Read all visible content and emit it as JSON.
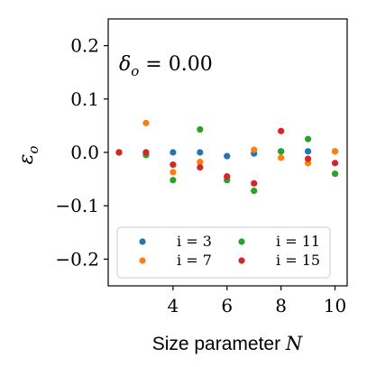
{
  "chart_data": {
    "type": "scatter",
    "title": "",
    "annotation": "δo = 0.00",
    "xlabel": "Size parameter N",
    "ylabel": "εo",
    "xlim": [
      1.6,
      10.45
    ],
    "ylim": [
      -0.25,
      0.25
    ],
    "xticks": [
      4,
      6,
      8,
      10
    ],
    "yticks": [
      -0.2,
      -0.1,
      0.0,
      0.1,
      0.2
    ],
    "ytick_labels": [
      "−0.2",
      "−0.1",
      "0.0",
      "0.1",
      "0.2"
    ],
    "grid": false,
    "legend_placement": "lower-center",
    "series": [
      {
        "name": "i = 3",
        "color": "#1f77b4",
        "x": [
          2,
          3,
          4,
          5,
          6,
          7,
          8,
          9,
          10
        ],
        "y": [
          0.0,
          0.0,
          0.0,
          0.0,
          -0.007,
          -0.002,
          0.002,
          0.002,
          0.002
        ]
      },
      {
        "name": "i = 7",
        "color": "#ff7f0e",
        "x": [
          2,
          3,
          4,
          5,
          6,
          7,
          8,
          9,
          10
        ],
        "y": [
          0.0,
          0.055,
          -0.037,
          -0.018,
          -0.048,
          0.005,
          -0.01,
          -0.02,
          0.002
        ]
      },
      {
        "name": "i = 11",
        "color": "#2ca02c",
        "x": [
          2,
          3,
          4,
          5,
          6,
          7,
          8,
          9,
          10
        ],
        "y": [
          0.0,
          -0.005,
          -0.052,
          0.043,
          -0.052,
          -0.072,
          0.002,
          0.025,
          -0.04
        ]
      },
      {
        "name": "i = 15",
        "color": "#d62728",
        "x": [
          2,
          3,
          4,
          5,
          6,
          7,
          8,
          9,
          10
        ],
        "y": [
          0.0,
          0.0,
          -0.023,
          -0.028,
          -0.045,
          -0.058,
          0.04,
          -0.012,
          -0.02
        ]
      }
    ]
  }
}
